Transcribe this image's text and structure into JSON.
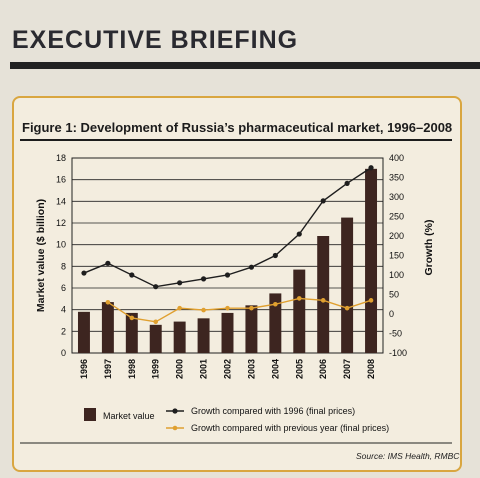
{
  "header": {
    "title": "EXECUTIVE BRIEFING"
  },
  "figure": {
    "title": "Figure 1: Development of Russia’s pharmaceutical market, 1996–2008",
    "source": "Source: IMS Health, RMBC"
  },
  "colors": {
    "bar": "#3d2520",
    "growth1996": "#1e1e1e",
    "growthPrev": "#e0a030",
    "panel_border": "#d9a640"
  },
  "chart_data": {
    "type": "bar",
    "categories": [
      "1996",
      "1997",
      "1998",
      "1999",
      "2000",
      "2001",
      "2002",
      "2003",
      "2004",
      "2005",
      "2006",
      "2007",
      "2008"
    ],
    "ylabel": "Market value ($ billion)",
    "ylabel_right": "Growth (%)",
    "ylim": [
      0,
      18
    ],
    "ylim_right": [
      -100,
      400
    ],
    "yticks": [
      0,
      2,
      4,
      6,
      8,
      10,
      12,
      14,
      16,
      18
    ],
    "yticks_right": [
      -100,
      -50,
      0,
      50,
      100,
      150,
      200,
      250,
      300,
      350,
      400
    ],
    "grid": true,
    "series": [
      {
        "name": "Market value",
        "axis": "left",
        "kind": "bar",
        "values": [
          3.8,
          4.7,
          3.7,
          2.6,
          2.9,
          3.2,
          3.7,
          4.4,
          5.5,
          7.7,
          10.8,
          12.5,
          17.0
        ]
      },
      {
        "name": "Growth compared with 1996 (final prices)",
        "axis": "right",
        "kind": "line",
        "values": [
          105,
          130,
          100,
          70,
          80,
          90,
          100,
          120,
          150,
          205,
          290,
          335,
          375
        ]
      },
      {
        "name": "Growth compared with previous year (final prices)",
        "axis": "right",
        "kind": "line",
        "values": [
          null,
          30,
          -10,
          -20,
          15,
          10,
          15,
          15,
          25,
          40,
          35,
          15,
          35
        ]
      }
    ]
  }
}
